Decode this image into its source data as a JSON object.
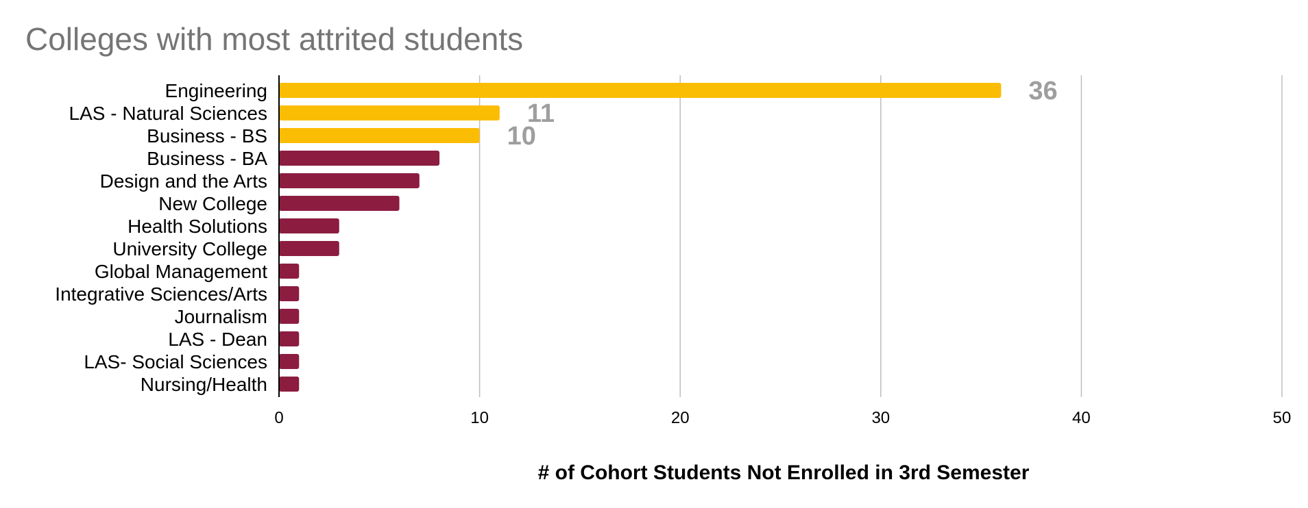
{
  "chart_data": {
    "type": "bar",
    "orientation": "horizontal",
    "title": "Colleges with most attrited students",
    "xlabel": "# of Cohort Students Not Enrolled in 3rd Semester",
    "ylabel": "",
    "xlim": [
      0,
      50
    ],
    "xticks": [
      "0",
      "10",
      "20",
      "30",
      "40",
      "50"
    ],
    "grid": true,
    "legend": "none",
    "categories": [
      "Engineering",
      "LAS - Natural Sciences",
      "Business - BS",
      "Business - BA",
      "Design and the Arts",
      "New College",
      "Health Solutions",
      "University College",
      "Global Management",
      "Integrative Sciences/Arts",
      "Journalism",
      "LAS - Dean",
      "LAS- Social Sciences",
      "Nursing/Health"
    ],
    "values": [
      36,
      11,
      10,
      8,
      7,
      6,
      3,
      3,
      1,
      1,
      1,
      1,
      1,
      1
    ],
    "data_labels": [
      "36",
      "11",
      "10",
      "",
      "",
      "",
      "",
      "",
      "",
      "",
      "",
      "",
      "",
      ""
    ],
    "colors": {
      "highlight": "#FBBC04",
      "default": "#8C1D40",
      "grid": "#BDBDBD",
      "axis": "#000000",
      "data_label": "#9E9E9E"
    },
    "highlight_count": 3
  }
}
